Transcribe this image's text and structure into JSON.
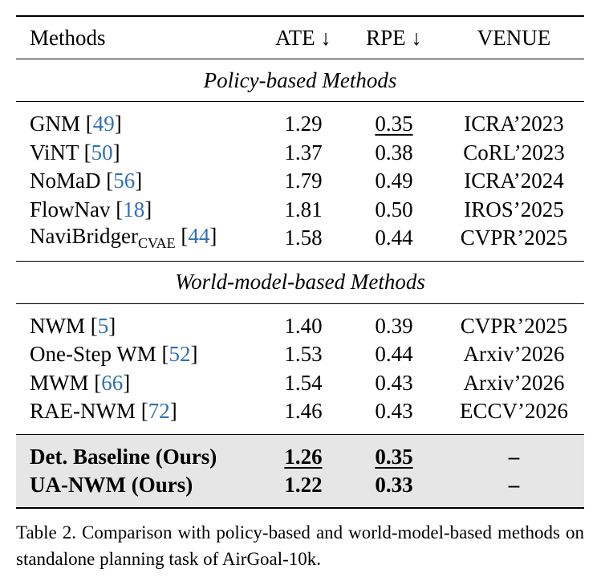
{
  "header": {
    "methods": "Methods",
    "ate": "ATE ↓",
    "rpe": "RPE ↓",
    "venue": "VENUE"
  },
  "sections": {
    "policy": "Policy-based Methods",
    "world": "World-model-based Methods"
  },
  "policy_rows": [
    {
      "name": "GNM",
      "cite": "49",
      "ate": "1.29",
      "rpe": "0.35",
      "venue": "ICRA’2023"
    },
    {
      "name": "ViNT",
      "cite": "50",
      "ate": "1.37",
      "rpe": "0.38",
      "venue": "CoRL’2023"
    },
    {
      "name": "NoMaD",
      "cite": "56",
      "ate": "1.79",
      "rpe": "0.49",
      "venue": "ICRA’2024"
    },
    {
      "name": "FlowNav",
      "cite": "18",
      "ate": "1.81",
      "rpe": "0.50",
      "venue": "IROS’2025"
    },
    {
      "name": "NaviBridger",
      "sub": "CVAE",
      "cite": "44",
      "ate": "1.58",
      "rpe": "0.44",
      "venue": "CVPR’2025"
    }
  ],
  "world_rows": [
    {
      "name": "NWM",
      "cite": "5",
      "ate": "1.40",
      "rpe": "0.39",
      "venue": "CVPR’2025"
    },
    {
      "name": "One-Step WM",
      "cite": "52",
      "ate": "1.53",
      "rpe": "0.44",
      "venue": "Arxiv’2026"
    },
    {
      "name": "MWM",
      "cite": "66",
      "ate": "1.54",
      "rpe": "0.43",
      "venue": "Arxiv’2026"
    },
    {
      "name": "RAE-NWM",
      "cite": "72",
      "ate": "1.46",
      "rpe": "0.43",
      "venue": "ECCV’2026"
    }
  ],
  "ours_rows": [
    {
      "name": "Det. Baseline (Ours)",
      "ate": "1.26",
      "rpe": "0.35",
      "venue": "–"
    },
    {
      "name": "UA-NWM (Ours)",
      "ate": "1.22",
      "rpe": "0.33",
      "venue": "–"
    }
  ],
  "caption": "Table 2.  Comparison with policy-based and world-model-based methods on standalone planning task of AirGoal-10k."
}
